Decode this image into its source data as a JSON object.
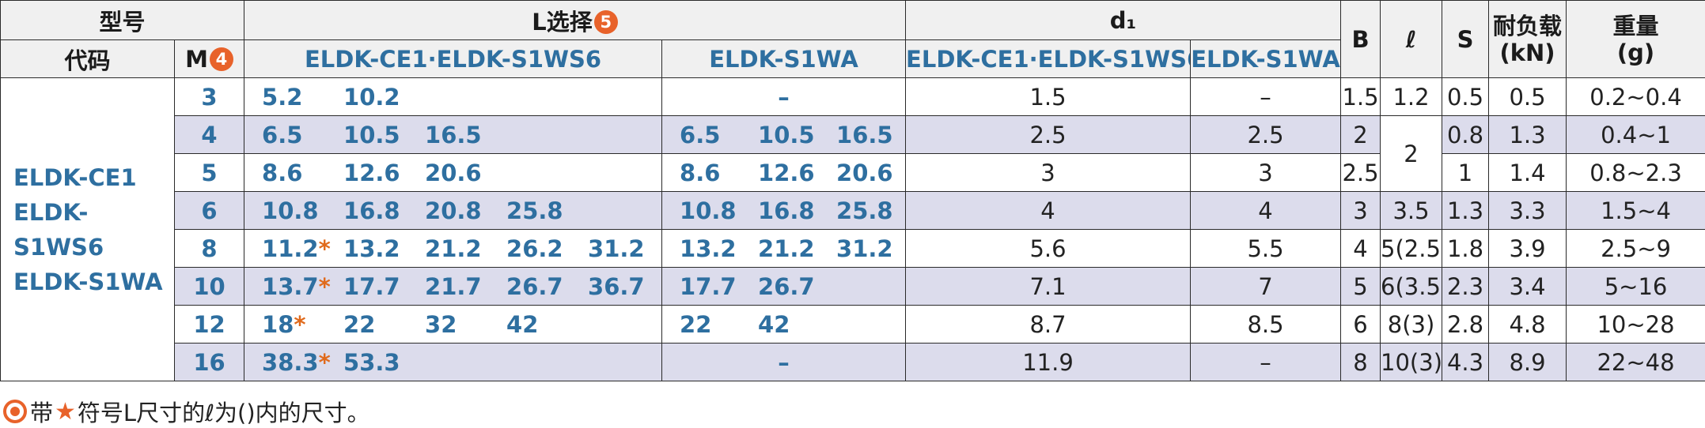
{
  "header": {
    "model": "型号",
    "code": "代码",
    "m": "M",
    "m_badge": "4",
    "l_select": "L选择",
    "l_badge": "5",
    "d1": "d₁",
    "l_group1": "ELDK-CE1·ELDK-S1WS6",
    "l_group2": "ELDK-S1WA",
    "d_group1": "ELDK-CE1·ELDK-S1WS6",
    "d_group2": "ELDK-S1WA",
    "b": "B",
    "ell": "ℓ",
    "s": "S",
    "load": "耐负载",
    "load_unit": "(kN)",
    "weight": "重量",
    "weight_unit": "(g)"
  },
  "codes": [
    "ELDK-CE1",
    "ELDK-S1WS6",
    "ELDK-S1WA"
  ],
  "rows": [
    {
      "m": "3",
      "l1": [
        "5.2",
        "10.2",
        "",
        "",
        ""
      ],
      "l1star": [
        false,
        false,
        false,
        false,
        false
      ],
      "l2": [
        "",
        "",
        ""
      ],
      "l2dash": "–",
      "d1a": "1.5",
      "d1b": "–",
      "b": "1.5",
      "ell": "1.2",
      "s": "0.5",
      "load": "0.5",
      "weight": "0.2~0.4"
    },
    {
      "m": "4",
      "l1": [
        "6.5",
        "10.5",
        "16.5",
        "",
        ""
      ],
      "l1star": [
        false,
        false,
        false,
        false,
        false
      ],
      "l2": [
        "6.5",
        "10.5",
        "16.5"
      ],
      "l2dash": "",
      "d1a": "2.5",
      "d1b": "2.5",
      "b": "2",
      "ell": "2",
      "s": "0.8",
      "load": "1.3",
      "weight": "0.4~1"
    },
    {
      "m": "5",
      "l1": [
        "8.6",
        "12.6",
        "20.6",
        "",
        ""
      ],
      "l1star": [
        false,
        false,
        false,
        false,
        false
      ],
      "l2": [
        "8.6",
        "12.6",
        "20.6"
      ],
      "l2dash": "",
      "d1a": "3",
      "d1b": "3",
      "b": "2.5",
      "ell": "",
      "s": "1",
      "load": "1.4",
      "weight": "0.8~2.3"
    },
    {
      "m": "6",
      "l1": [
        "10.8",
        "16.8",
        "20.8",
        "25.8",
        ""
      ],
      "l1star": [
        false,
        false,
        false,
        false,
        false
      ],
      "l2": [
        "10.8",
        "16.8",
        "25.8"
      ],
      "l2dash": "",
      "d1a": "4",
      "d1b": "4",
      "b": "3",
      "ell": "3.5",
      "s": "1.3",
      "load": "3.3",
      "weight": "1.5~4"
    },
    {
      "m": "8",
      "l1": [
        "11.2",
        "13.2",
        "21.2",
        "26.2",
        "31.2"
      ],
      "l1star": [
        true,
        false,
        false,
        false,
        false
      ],
      "l2": [
        "13.2",
        "21.2",
        "31.2"
      ],
      "l2dash": "",
      "d1a": "5.6",
      "d1b": "5.5",
      "b": "4",
      "ell": "5(2.5)",
      "s": "1.8",
      "load": "3.9",
      "weight": "2.5~9"
    },
    {
      "m": "10",
      "l1": [
        "13.7",
        "17.7",
        "21.7",
        "26.7",
        "36.7"
      ],
      "l1star": [
        true,
        false,
        false,
        false,
        false
      ],
      "l2": [
        "17.7",
        "26.7",
        ""
      ],
      "l2dash": "",
      "d1a": "7.1",
      "d1b": "7",
      "b": "5",
      "ell": "6(3.5)",
      "s": "2.3",
      "load": "3.4",
      "weight": "5~16"
    },
    {
      "m": "12",
      "l1": [
        "18",
        "22",
        "32",
        "42",
        ""
      ],
      "l1star": [
        true,
        false,
        false,
        false,
        false
      ],
      "l2": [
        "22",
        "42",
        ""
      ],
      "l2dash": "",
      "d1a": "8.7",
      "d1b": "8.5",
      "b": "6",
      "ell": "8(3)",
      "s": "2.8",
      "load": "4.8",
      "weight": "10~28"
    },
    {
      "m": "16",
      "l1": [
        "38.3",
        "53.3",
        "",
        "",
        ""
      ],
      "l1star": [
        true,
        false,
        false,
        false,
        false
      ],
      "l2": [
        "",
        "",
        ""
      ],
      "l2dash": "–",
      "d1a": "11.9",
      "d1b": "–",
      "b": "8",
      "ell": "10(3)",
      "s": "4.3",
      "load": "8.9",
      "weight": "22~48"
    }
  ],
  "star_symbol": "*",
  "footnote": {
    "prefix": "带",
    "star": "★",
    "text": "符号L尺寸的ℓ为()内的尺寸。"
  },
  "colors": {
    "accent": "#e8622a",
    "blue": "#2e6fa0",
    "shade": "#dcdcec",
    "header_bg": "#f0f0f0"
  }
}
